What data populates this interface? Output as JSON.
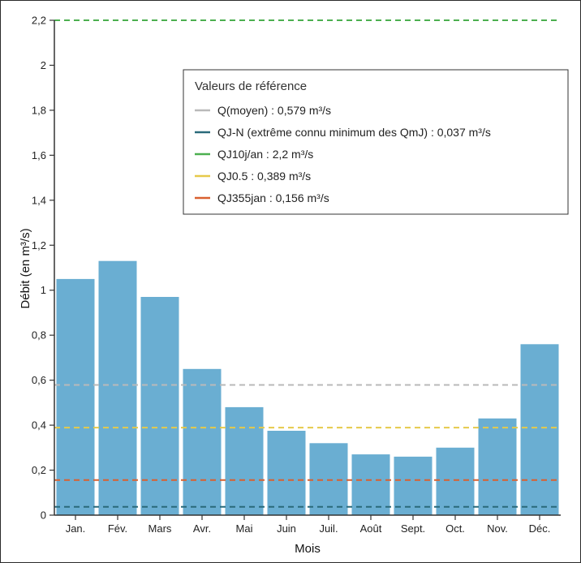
{
  "chart_data": {
    "type": "bar",
    "categories": [
      "Jan.",
      "Fév.",
      "Mars",
      "Avr.",
      "Mai",
      "Juin",
      "Juil.",
      "Août",
      "Sept.",
      "Oct.",
      "Nov.",
      "Déc."
    ],
    "values": [
      1.05,
      1.13,
      0.97,
      0.65,
      0.48,
      0.375,
      0.32,
      0.27,
      0.26,
      0.3,
      0.43,
      0.76
    ],
    "xlabel": "Mois",
    "ylabel": "Débit (en m³/s)",
    "ylim": [
      0,
      2.2
    ],
    "yticks": [
      "0",
      "0,2",
      "0,4",
      "0,6",
      "0,8",
      "1",
      "1,2",
      "1,4",
      "1,6",
      "1,8",
      "2",
      "2,2"
    ],
    "bar_color": "#6aaed2",
    "grid": false,
    "legend": {
      "title": "Valeurs de référence",
      "placement": "top-right",
      "entries": [
        {
          "label": "Q(moyen) : 0,579 m³/s",
          "value": 0.579,
          "color": "#b9b9b9"
        },
        {
          "label": "QJ-N (extrême connu minimum des QmJ) : 0,037 m³/s",
          "value": 0.037,
          "color": "#2a6a7a"
        },
        {
          "label": "QJ10j/an : 2,2 m³/s",
          "value": 2.2,
          "color": "#4caf50"
        },
        {
          "label": "QJ0.5 : 0,389 m³/s",
          "value": 0.389,
          "color": "#e6c94a"
        },
        {
          "label": "QJ355jan : 0,156 m³/s",
          "value": 0.156,
          "color": "#d9602f"
        }
      ]
    }
  }
}
